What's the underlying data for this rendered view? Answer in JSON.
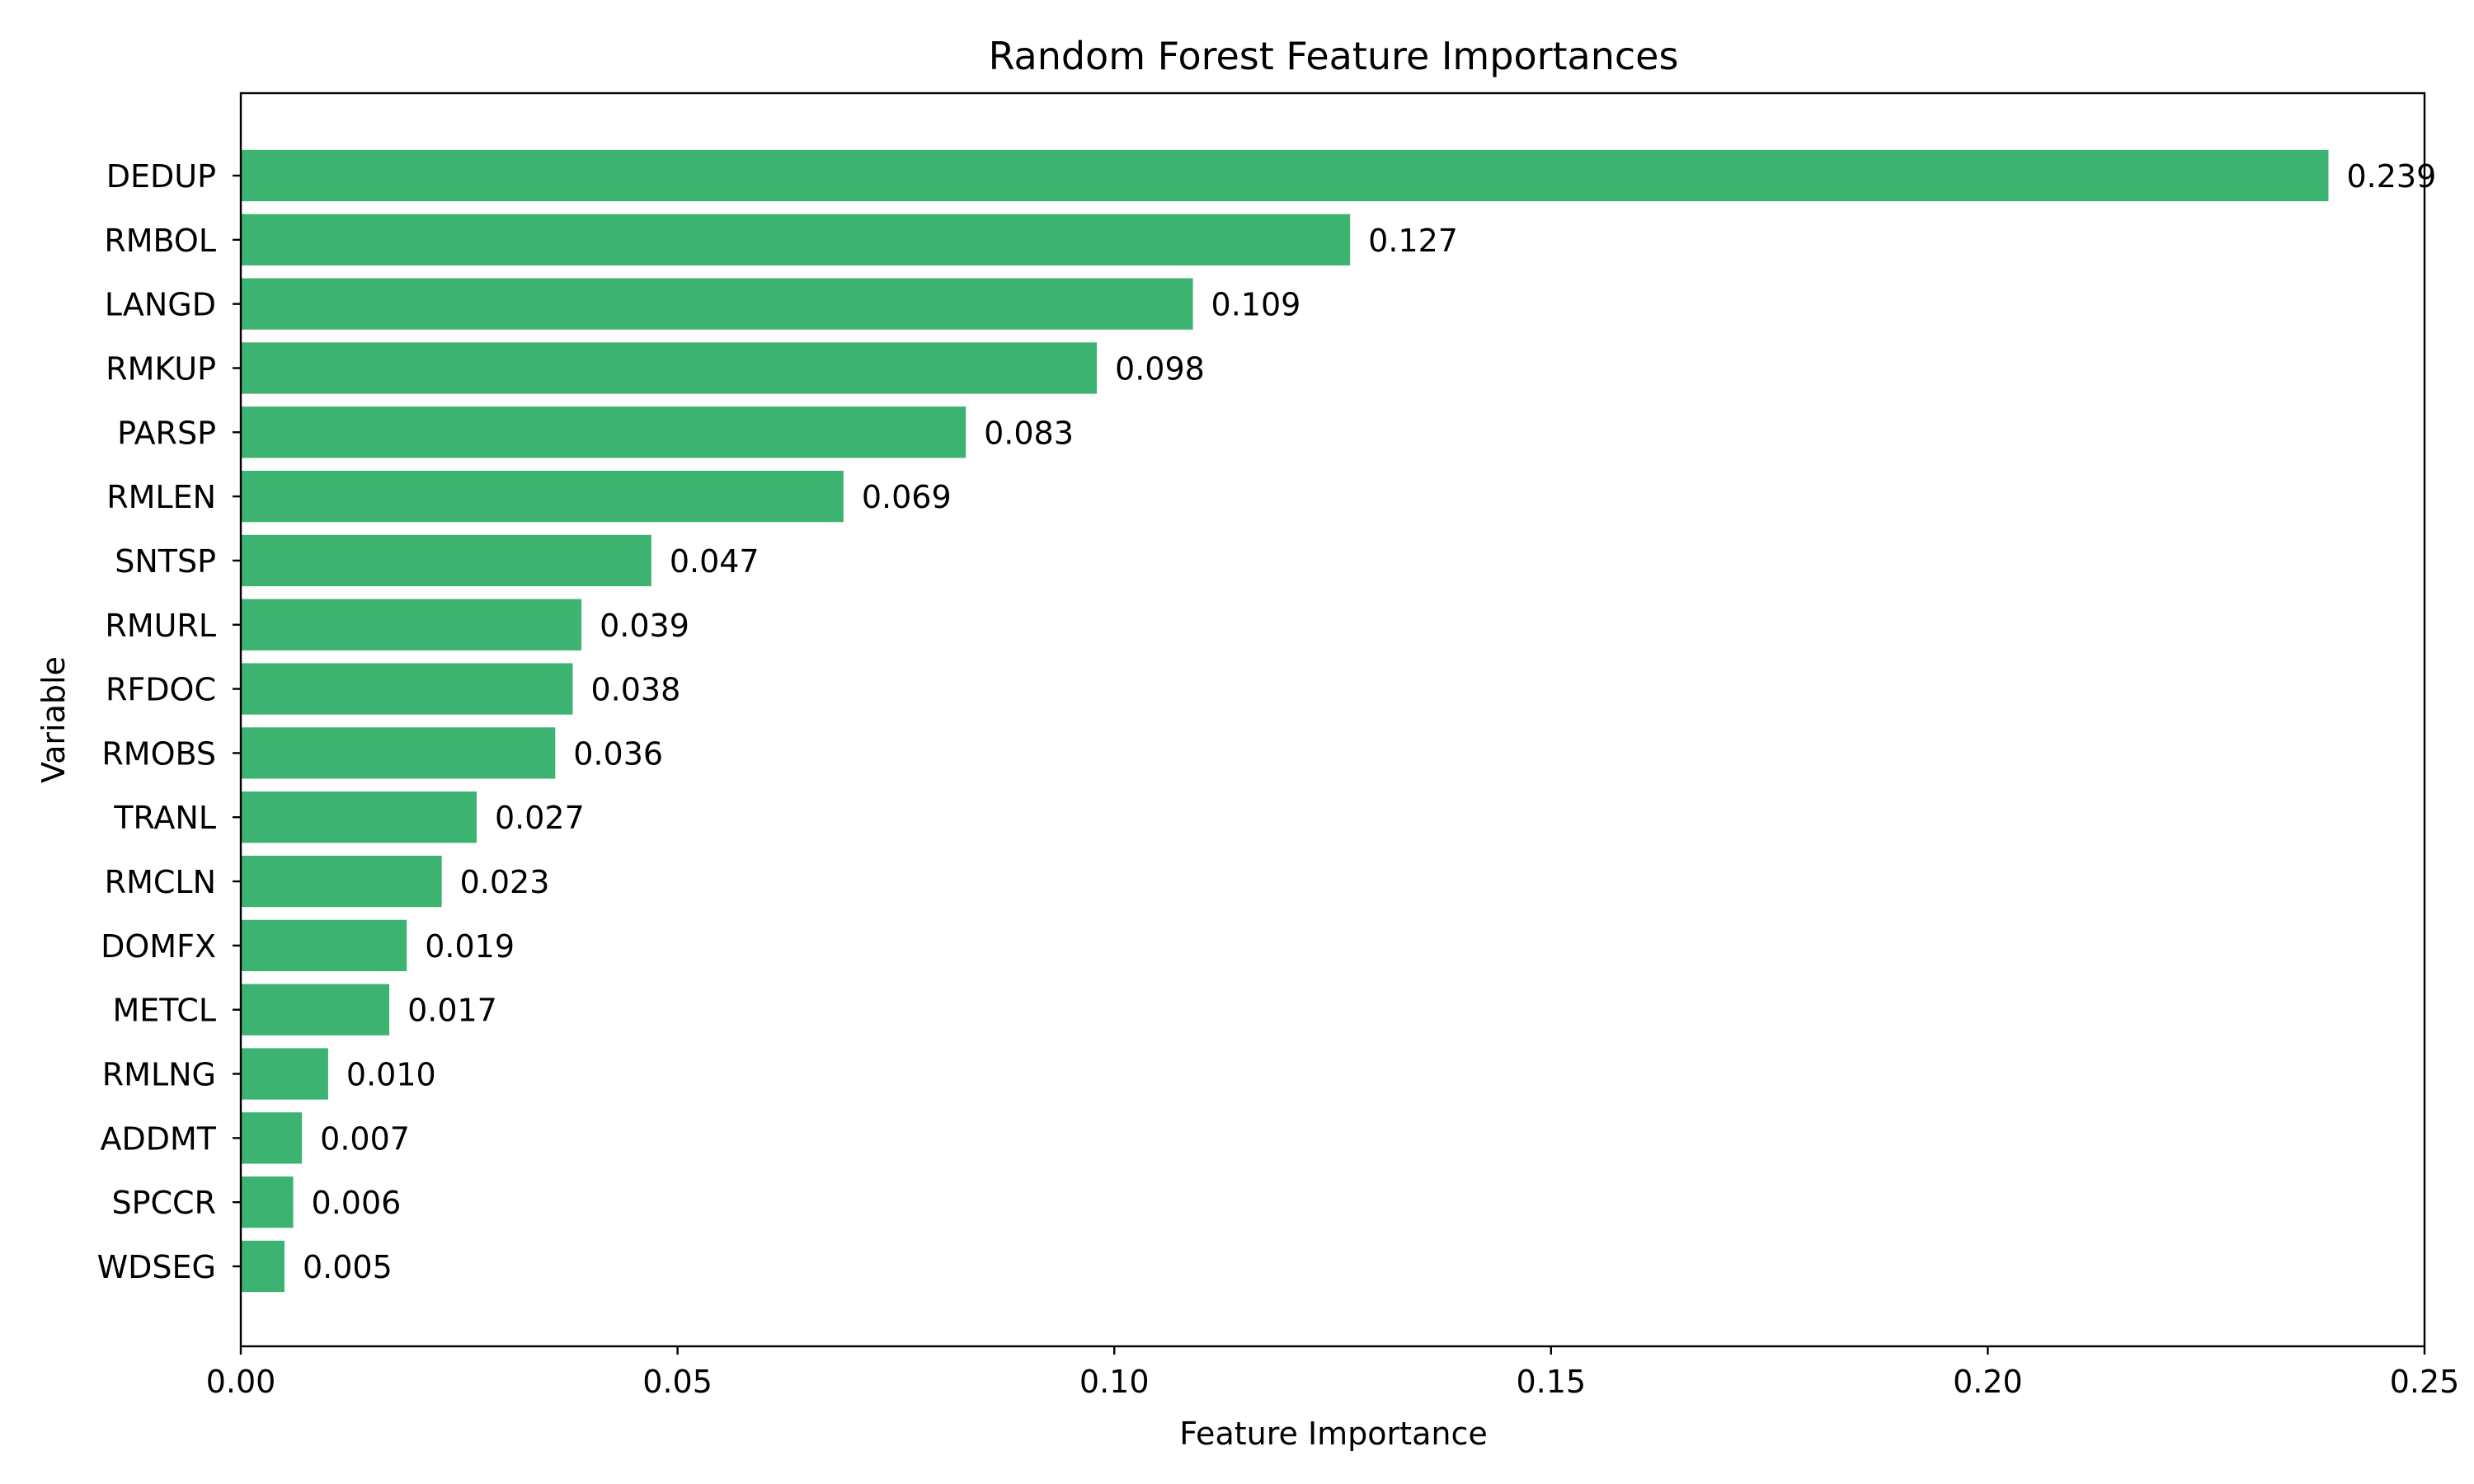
{
  "chart_data": {
    "type": "bar",
    "orientation": "horizontal",
    "title": "Random Forest Feature Importances",
    "xlabel": "Feature Importance",
    "ylabel": "Variable",
    "xlim": [
      0,
      0.25
    ],
    "xticks": [
      0.0,
      0.05,
      0.1,
      0.15,
      0.2,
      0.25
    ],
    "xtick_labels": [
      "0.00",
      "0.05",
      "0.10",
      "0.15",
      "0.20",
      "0.25"
    ],
    "grid": false,
    "bar_color": "#3cb371",
    "categories": [
      "DEDUP",
      "RMBOL",
      "LANGD",
      "RMKUP",
      "PARSP",
      "RMLEN",
      "SNTSP",
      "RMURL",
      "RFDOC",
      "RMOBS",
      "TRANL",
      "RMCLN",
      "DOMFX",
      "METCL",
      "RMLNG",
      "ADDMT",
      "SPCCR",
      "WDSEG"
    ],
    "values": [
      0.239,
      0.127,
      0.109,
      0.098,
      0.083,
      0.069,
      0.047,
      0.039,
      0.038,
      0.036,
      0.027,
      0.023,
      0.019,
      0.017,
      0.01,
      0.007,
      0.006,
      0.005
    ],
    "value_labels": [
      "0.239",
      "0.127",
      "0.109",
      "0.098",
      "0.083",
      "0.069",
      "0.047",
      "0.039",
      "0.038",
      "0.036",
      "0.027",
      "0.023",
      "0.019",
      "0.017",
      "0.010",
      "0.007",
      "0.006",
      "0.005"
    ]
  }
}
